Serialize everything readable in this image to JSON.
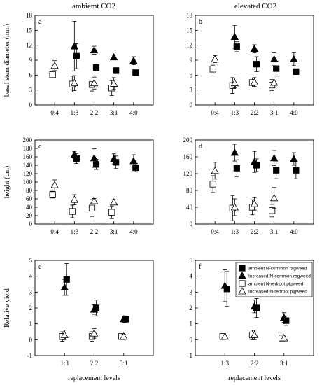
{
  "column_titles": [
    "ambiemt CO2",
    "elevated CO2"
  ],
  "legend": [
    {
      "label": "ambient N-common ragweed",
      "marker": "filled-square"
    },
    {
      "label": "Increased N-common ragweed",
      "marker": "filled-triangle"
    },
    {
      "label": "ambient N-redroot pigweed",
      "marker": "open-square"
    },
    {
      "label": "Increased N-redroot pigweed",
      "marker": "open-triangle"
    }
  ],
  "chart_data": [
    {
      "type": "scatter",
      "panel": "a",
      "column": 0,
      "row": 0,
      "categories": [
        "0:4",
        "1:3",
        "2:2",
        "3:1",
        "4:0"
      ],
      "ylabel": "basal stem diameter (mm)",
      "xlabel": "",
      "ylim": [
        0,
        18
      ],
      "yticks": [
        0,
        3,
        6,
        9,
        12,
        15,
        18
      ],
      "series": [
        {
          "marker": "filled-square",
          "points": [
            [
              1,
              9.8,
              2.5
            ],
            [
              2,
              7.5,
              0.6
            ],
            [
              3,
              6.9,
              0.6
            ],
            [
              4,
              6.5,
              0.3
            ]
          ]
        },
        {
          "marker": "filled-triangle",
          "points": [
            [
              1,
              11.8,
              5.0
            ],
            [
              2,
              11.0,
              0.8
            ],
            [
              3,
              9.6,
              0.4
            ],
            [
              4,
              8.9,
              0.8
            ]
          ]
        },
        {
          "marker": "open-square",
          "points": [
            [
              0,
              6.1,
              0.5
            ],
            [
              1,
              4.2,
              1.6
            ],
            [
              2,
              4.1,
              1.3
            ],
            [
              3,
              3.4,
              1.5
            ]
          ]
        },
        {
          "marker": "open-triangle",
          "points": [
            [
              0,
              7.9,
              1.0
            ],
            [
              1,
              4.4,
              1.5
            ],
            [
              2,
              4.4,
              1.2
            ],
            [
              3,
              4.3,
              1.2
            ]
          ]
        }
      ]
    },
    {
      "type": "scatter",
      "panel": "b",
      "column": 1,
      "row": 0,
      "categories": [
        "0:4",
        "1:3",
        "2:2",
        "3:1",
        "4:0"
      ],
      "ylabel": "",
      "xlabel": "",
      "ylim": [
        0,
        18
      ],
      "yticks": [
        0,
        3,
        6,
        9,
        12,
        15,
        18
      ],
      "series": [
        {
          "marker": "filled-square",
          "points": [
            [
              1,
              11.7,
              1.0
            ],
            [
              2,
              8.2,
              1.5
            ],
            [
              3,
              7.3,
              1.5
            ],
            [
              4,
              6.7,
              0.5
            ]
          ]
        },
        {
          "marker": "filled-triangle",
          "points": [
            [
              1,
              13.7,
              2.3
            ],
            [
              2,
              11.3,
              0.8
            ],
            [
              3,
              9.2,
              1.3
            ],
            [
              4,
              9.2,
              1.3
            ]
          ]
        },
        {
          "marker": "open-square",
          "points": [
            [
              0,
              7.2,
              0.8
            ],
            [
              1,
              3.9,
              1.6
            ],
            [
              2,
              4.5,
              0.9
            ],
            [
              3,
              4.0,
              1.1
            ]
          ]
        },
        {
          "marker": "open-triangle",
          "points": [
            [
              0,
              9.2,
              0.7
            ],
            [
              1,
              4.4,
              1.0
            ],
            [
              2,
              4.6,
              0.9
            ],
            [
              3,
              4.5,
              0.9
            ]
          ]
        }
      ]
    },
    {
      "type": "scatter",
      "panel": "c",
      "column": 0,
      "row": 1,
      "categories": [
        "0:4",
        "1:3",
        "2:2",
        "3:1",
        "4:0"
      ],
      "ylabel": "height (cm)",
      "xlabel": "",
      "ylim": [
        0,
        200
      ],
      "yticks": [
        0,
        20,
        40,
        60,
        80,
        100,
        120,
        140,
        160,
        180,
        200
      ],
      "series": [
        {
          "marker": "filled-square",
          "points": [
            [
              1,
              156,
              12
            ],
            [
              2,
              142,
              12
            ],
            [
              3,
              147,
              15
            ],
            [
              4,
              134,
              10
            ]
          ]
        },
        {
          "marker": "filled-triangle",
          "points": [
            [
              1,
              165,
              8
            ],
            [
              2,
              157,
              22
            ],
            [
              3,
              155,
              12
            ],
            [
              4,
              150,
              15
            ]
          ]
        },
        {
          "marker": "open-square",
          "points": [
            [
              0,
              70,
              8
            ],
            [
              1,
              30,
              15
            ],
            [
              2,
              38,
              20
            ],
            [
              3,
              28,
              15
            ]
          ]
        },
        {
          "marker": "open-triangle",
          "points": [
            [
              0,
              93,
              12
            ],
            [
              1,
              58,
              12
            ],
            [
              2,
              55,
              6
            ],
            [
              3,
              52,
              6
            ]
          ]
        }
      ]
    },
    {
      "type": "scatter",
      "panel": "d",
      "column": 1,
      "row": 1,
      "categories": [
        "0:4",
        "1:3",
        "2:2",
        "3:1",
        "4:0"
      ],
      "ylabel": "",
      "xlabel": "",
      "ylim": [
        0,
        200
      ],
      "yticks": [
        0,
        40,
        80,
        120,
        160,
        200
      ],
      "series": [
        {
          "marker": "filled-square",
          "points": [
            [
              1,
              133,
              20
            ],
            [
              2,
              140,
              15
            ],
            [
              3,
              128,
              20
            ],
            [
              4,
              128,
              20
            ]
          ]
        },
        {
          "marker": "filled-triangle",
          "points": [
            [
              1,
              170,
              20
            ],
            [
              2,
              148,
              25
            ],
            [
              3,
              157,
              18
            ],
            [
              4,
              155,
              15
            ]
          ]
        },
        {
          "marker": "open-square",
          "points": [
            [
              0,
              95,
              20
            ],
            [
              1,
              38,
              30
            ],
            [
              2,
              40,
              18
            ],
            [
              3,
              32,
              15
            ]
          ]
        },
        {
          "marker": "open-triangle",
          "points": [
            [
              0,
              127,
              20
            ],
            [
              1,
              40,
              20
            ],
            [
              2,
              48,
              15
            ],
            [
              3,
              62,
              25
            ]
          ]
        }
      ]
    },
    {
      "type": "scatter",
      "panel": "e",
      "column": 0,
      "row": 2,
      "categories": [
        "1:3",
        "2:2",
        "3:1"
      ],
      "ylabel": "Relative yield",
      "xlabel": "replacement levels",
      "ylim": [
        -1,
        5
      ],
      "yticks": [
        -1,
        0,
        1,
        2,
        3,
        4,
        5
      ],
      "series": [
        {
          "marker": "filled-square",
          "points": [
            [
              0,
              3.8,
              1.0
            ],
            [
              1,
              2.0,
              0.5
            ],
            [
              2,
              1.3,
              0.2
            ]
          ]
        },
        {
          "marker": "filled-triangle",
          "points": [
            [
              0,
              3.3,
              0.5
            ],
            [
              1,
              1.9,
              0.3
            ],
            [
              2,
              1.3,
              0.2
            ]
          ]
        },
        {
          "marker": "open-square",
          "points": [
            [
              0,
              0.2,
              0.3
            ],
            [
              1,
              0.2,
              0.3
            ],
            [
              2,
              0.2,
              0.15
            ]
          ]
        },
        {
          "marker": "open-triangle",
          "points": [
            [
              0,
              0.3,
              0.3
            ],
            [
              1,
              0.4,
              0.3
            ],
            [
              2,
              0.2,
              0.15
            ]
          ]
        }
      ]
    },
    {
      "type": "scatter",
      "panel": "f",
      "column": 1,
      "row": 2,
      "categories": [
        "1:3",
        "2:2",
        "3:1"
      ],
      "ylabel": "",
      "xlabel": "replacement levels",
      "ylim": [
        -1,
        5
      ],
      "yticks": [
        -1,
        0,
        1,
        2,
        3,
        4,
        5
      ],
      "series": [
        {
          "marker": "filled-square",
          "points": [
            [
              0,
              3.2,
              1.1
            ],
            [
              1,
              2.0,
              0.6
            ],
            [
              2,
              1.2,
              0.3
            ]
          ]
        },
        {
          "marker": "filled-triangle",
          "points": [
            [
              0,
              3.4,
              1.0
            ],
            [
              1,
              2.1,
              0.4
            ],
            [
              2,
              1.4,
              0.3
            ]
          ]
        },
        {
          "marker": "open-square",
          "points": [
            [
              0,
              0.2,
              0.1
            ],
            [
              1,
              0.3,
              0.3
            ],
            [
              2,
              0.1,
              0.1
            ]
          ]
        },
        {
          "marker": "open-triangle",
          "points": [
            [
              0,
              0.2,
              0.1
            ],
            [
              1,
              0.3,
              0.3
            ],
            [
              2,
              0.1,
              0.1
            ]
          ]
        }
      ]
    }
  ]
}
